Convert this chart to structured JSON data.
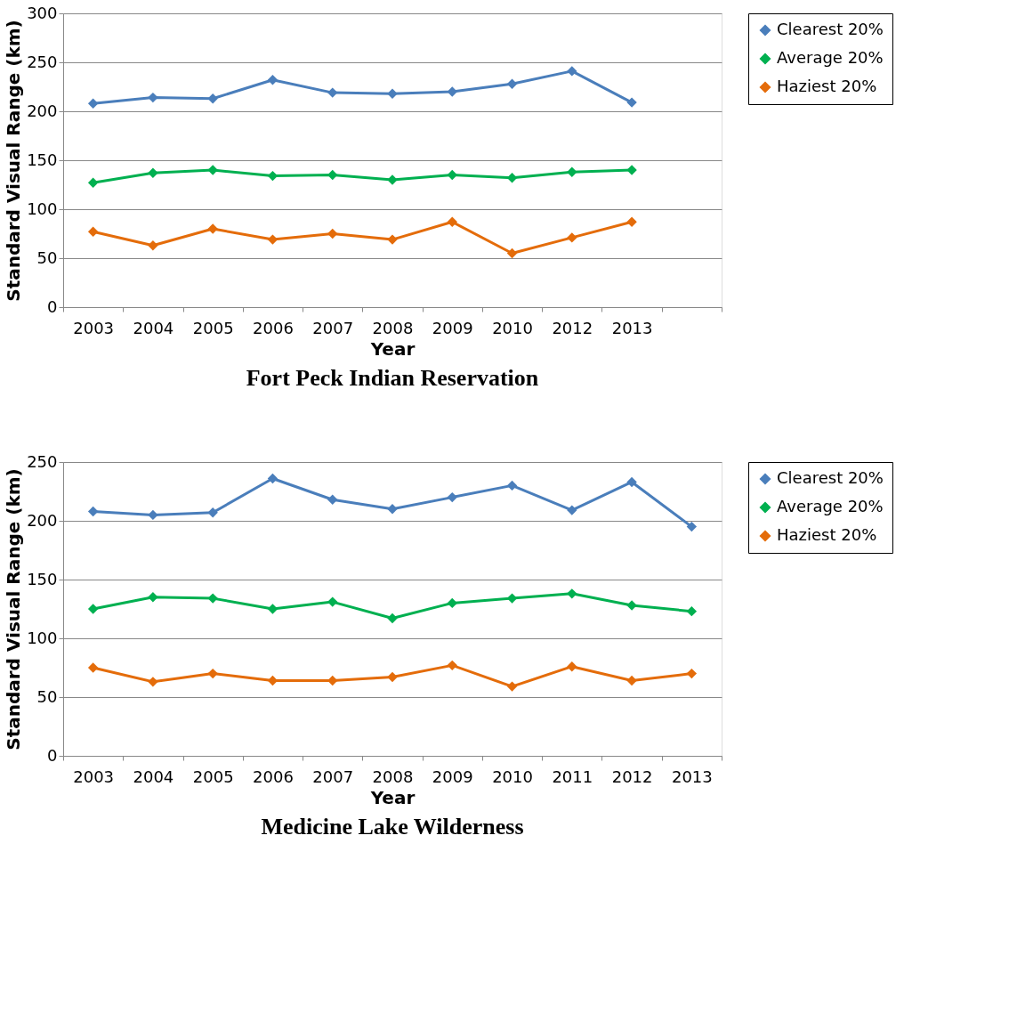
{
  "chart_data": [
    {
      "type": "line",
      "title": "Fort Peck Indian Reservation",
      "xlabel": "Year",
      "ylabel": "Standard Visual Range (km)",
      "categories": [
        "2003",
        "2004",
        "2005",
        "2006",
        "2007",
        "2008",
        "2009",
        "2010",
        "2012",
        "2013",
        null
      ],
      "ylim": [
        0,
        300
      ],
      "yticks": [
        0,
        50,
        100,
        150,
        200,
        250,
        300
      ],
      "grid": "y",
      "legend": "right",
      "marker": "diamond",
      "line_style": "solid",
      "series": [
        {
          "name": "Clearest 20%",
          "color": "#4a7ebb",
          "values": [
            208,
            214,
            213,
            232,
            219,
            218,
            220,
            228,
            241,
            209,
            null
          ]
        },
        {
          "name": "Average 20%",
          "color": "#00b050",
          "values": [
            127,
            137,
            140,
            134,
            135,
            130,
            135,
            132,
            138,
            140,
            null
          ]
        },
        {
          "name": "Haziest 20%",
          "color": "#e46c0a",
          "values": [
            77,
            63,
            80,
            69,
            75,
            69,
            87,
            55,
            71,
            87,
            null
          ]
        }
      ]
    },
    {
      "type": "line",
      "title": "Medicine Lake Wilderness",
      "xlabel": "Year",
      "ylabel": "Standard Visual Range (km)",
      "categories": [
        "2003",
        "2004",
        "2005",
        "2006",
        "2007",
        "2008",
        "2009",
        "2010",
        "2011",
        "2012",
        "2013"
      ],
      "ylim": [
        0,
        250
      ],
      "yticks": [
        0,
        50,
        100,
        150,
        200,
        250
      ],
      "grid": "y",
      "legend": "right",
      "marker": "diamond",
      "line_style": "solid",
      "series": [
        {
          "name": "Clearest 20%",
          "color": "#4a7ebb",
          "values": [
            208,
            205,
            207,
            236,
            218,
            210,
            220,
            230,
            209,
            233,
            195
          ]
        },
        {
          "name": "Average 20%",
          "color": "#00b050",
          "values": [
            125,
            135,
            134,
            125,
            131,
            117,
            130,
            134,
            138,
            128,
            123
          ]
        },
        {
          "name": "Haziest 20%",
          "color": "#e46c0a",
          "values": [
            75,
            63,
            70,
            64,
            64,
            67,
            77,
            59,
            76,
            64,
            70
          ]
        }
      ]
    }
  ]
}
